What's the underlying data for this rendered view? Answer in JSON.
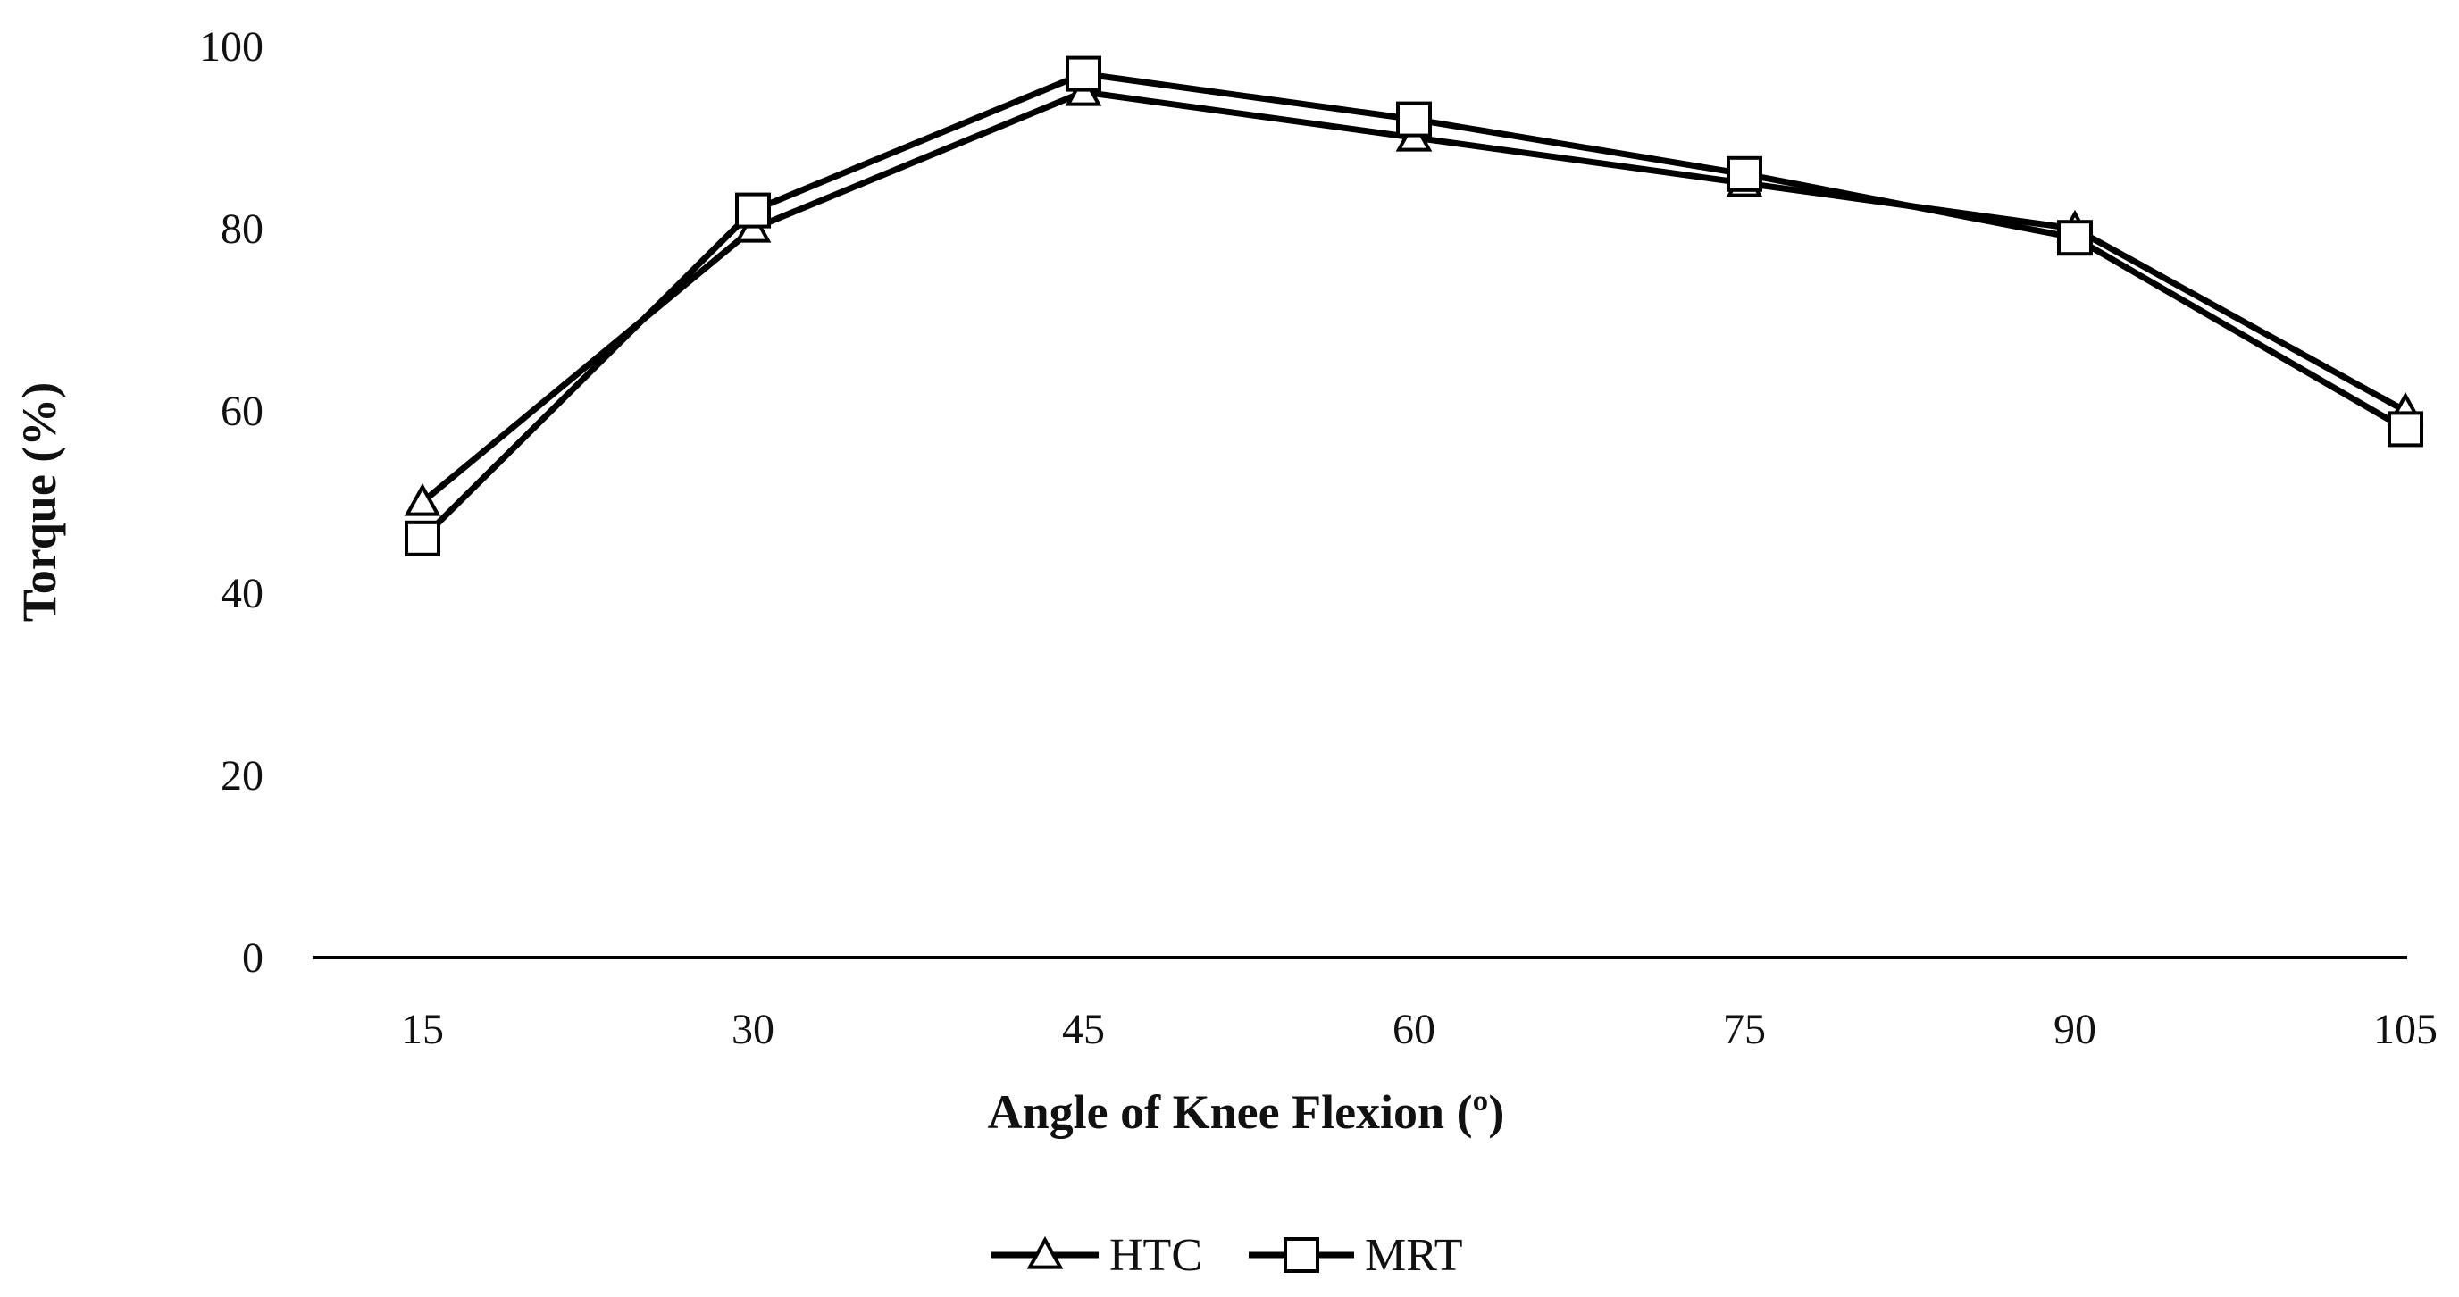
{
  "chart_data": {
    "type": "line",
    "xlabel": "Angle of Knee Flexion (º)",
    "ylabel": "Torque (%)",
    "categories": [
      "15",
      "30",
      "45",
      "60",
      "75",
      "90",
      "105"
    ],
    "ylim": [
      0,
      100
    ],
    "yticks": [
      "0",
      "20",
      "40",
      "60",
      "80",
      "100"
    ],
    "grid": false,
    "legend_position": "bottom-center",
    "series": [
      {
        "name": "HTC",
        "marker": "triangle",
        "color": "#000000",
        "values": [
          50,
          80,
          95,
          90,
          85,
          80,
          60
        ]
      },
      {
        "name": "MRT",
        "marker": "square",
        "color": "#000000",
        "values": [
          46,
          82,
          97,
          92,
          86,
          79,
          58
        ]
      }
    ]
  }
}
